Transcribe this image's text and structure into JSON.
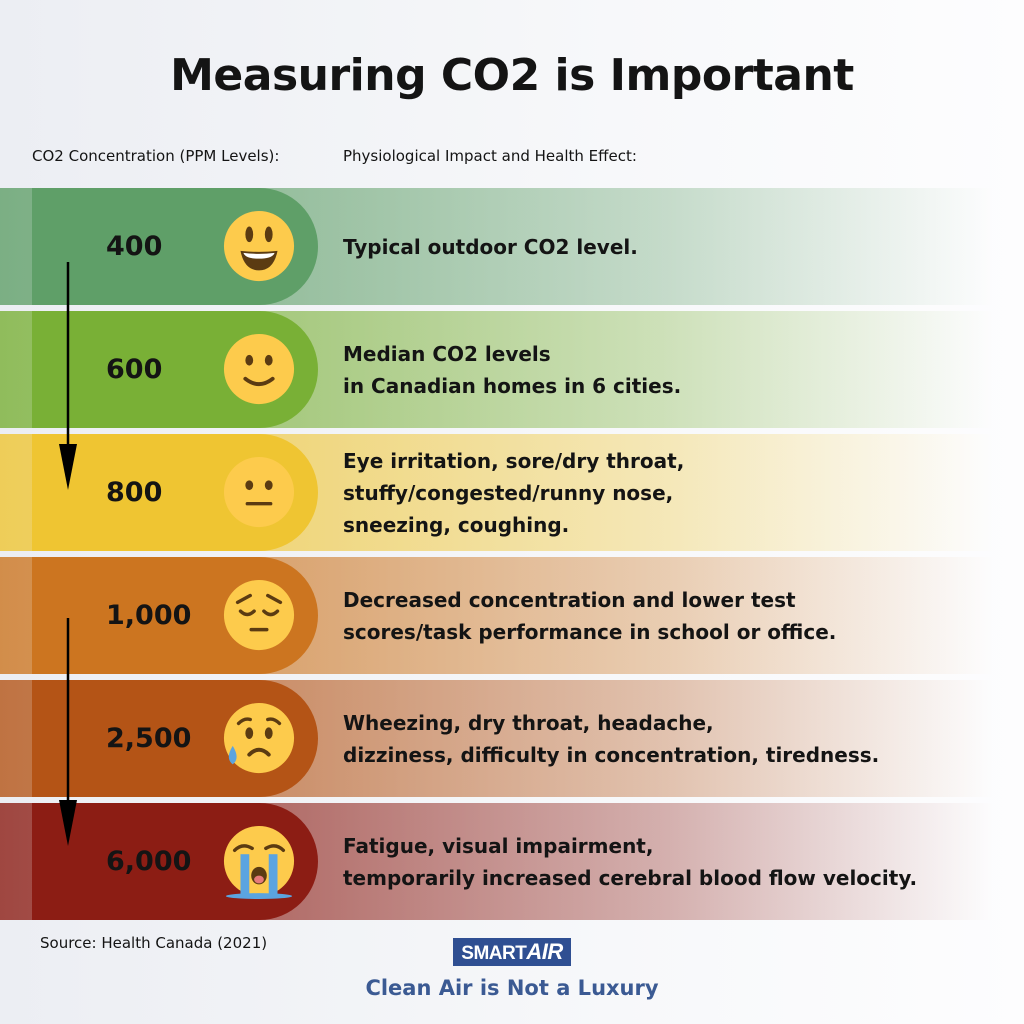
{
  "title": "Measuring CO2 is Important",
  "headers": {
    "left": "CO2 Concentration (PPM Levels):",
    "right": "Physiological Impact and Health Effect:"
  },
  "rows": [
    {
      "level": "400",
      "emoji": "grinning-face-icon",
      "color": "#5f9f68",
      "lines": [
        "Typical outdoor CO2 level."
      ]
    },
    {
      "level": "600",
      "emoji": "slightly-smiling-face-icon",
      "color": "#79b036",
      "lines": [
        "Median CO2 levels",
        "in Canadian homes in 6 cities."
      ]
    },
    {
      "level": "800",
      "emoji": "neutral-face-icon",
      "color": "#efc532",
      "lines": [
        "Eye irritation, sore/dry throat,",
        "stuffy/congested/runny nose,",
        "sneezing, coughing."
      ]
    },
    {
      "level": "1,000",
      "emoji": "pensive-face-icon",
      "color": "#cc7520",
      "lines": [
        "Decreased concentration and lower test",
        "scores/task performance in school or office."
      ]
    },
    {
      "level": "2,500",
      "emoji": "sad-sweat-face-icon",
      "color": "#b45416",
      "lines": [
        "Wheezing, dry throat, headache,",
        "dizziness, difficulty in concentration, tiredness."
      ]
    },
    {
      "level": "6,000",
      "emoji": "loudly-crying-face-icon",
      "color": "#8c1d14",
      "lines": [
        "Fatigue, visual impairment,",
        "temporarily increased cerebral blood flow velocity."
      ]
    }
  ],
  "source": "Source: Health Canada (2021)",
  "logo": {
    "smart": "SMART",
    "air": "AIR"
  },
  "tagline": "Clean Air is Not a Luxury"
}
